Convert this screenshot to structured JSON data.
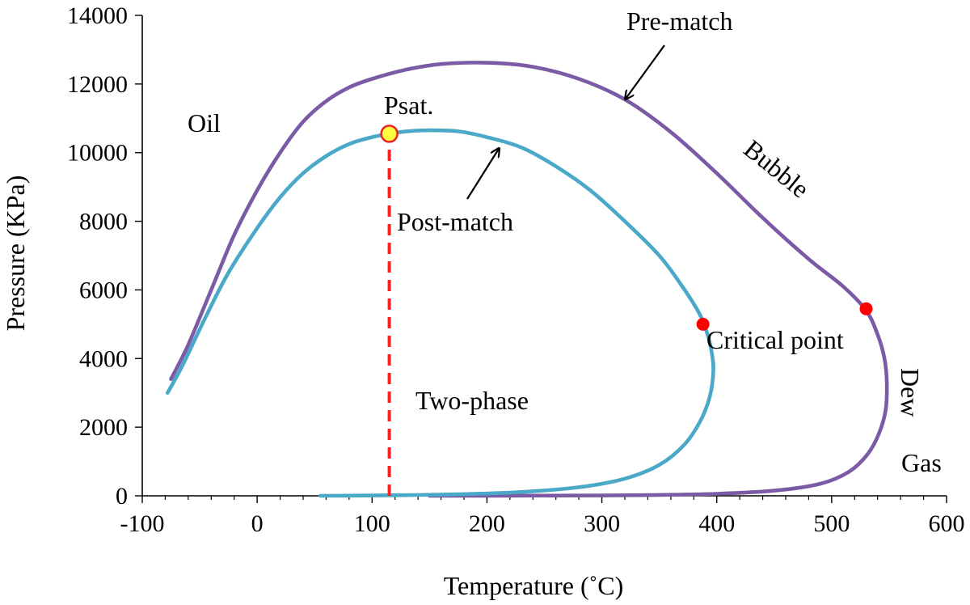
{
  "chart_data": {
    "type": "line",
    "title": "",
    "xlabel": "Temperature (˚C)",
    "ylabel": "Pressure (KPa)",
    "xlim": [
      -100,
      600
    ],
    "ylim": [
      0,
      14000
    ],
    "x_ticks": [
      -100,
      0,
      100,
      200,
      300,
      400,
      500,
      600
    ],
    "y_ticks": [
      0,
      2000,
      4000,
      6000,
      8000,
      10000,
      12000,
      14000
    ],
    "grid": false,
    "series": [
      {
        "name": "Pre-match",
        "color": "#7b5aa6",
        "points": [
          [
            -75,
            3400
          ],
          [
            -60,
            4400
          ],
          [
            -40,
            6000
          ],
          [
            -20,
            7600
          ],
          [
            0,
            8900
          ],
          [
            20,
            10000
          ],
          [
            40,
            10900
          ],
          [
            60,
            11500
          ],
          [
            80,
            11900
          ],
          [
            100,
            12150
          ],
          [
            130,
            12420
          ],
          [
            160,
            12580
          ],
          [
            200,
            12620
          ],
          [
            240,
            12500
          ],
          [
            280,
            12150
          ],
          [
            320,
            11550
          ],
          [
            360,
            10600
          ],
          [
            400,
            9400
          ],
          [
            440,
            8100
          ],
          [
            480,
            6900
          ],
          [
            510,
            6100
          ],
          [
            530,
            5400
          ],
          [
            540,
            4700
          ],
          [
            546,
            4000
          ],
          [
            548,
            3300
          ],
          [
            547,
            2500
          ],
          [
            541,
            1800
          ],
          [
            531,
            1200
          ],
          [
            515,
            700
          ],
          [
            490,
            350
          ],
          [
            450,
            150
          ],
          [
            400,
            60
          ],
          [
            350,
            25
          ],
          [
            300,
            10
          ],
          [
            200,
            3
          ],
          [
            150,
            0
          ]
        ]
      },
      {
        "name": "Post-match",
        "color": "#4aa8c8",
        "points": [
          [
            -78,
            3000
          ],
          [
            -65,
            3800
          ],
          [
            -45,
            5200
          ],
          [
            -25,
            6500
          ],
          [
            0,
            7800
          ],
          [
            20,
            8700
          ],
          [
            40,
            9400
          ],
          [
            60,
            9900
          ],
          [
            80,
            10250
          ],
          [
            100,
            10450
          ],
          [
            115,
            10550
          ],
          [
            130,
            10620
          ],
          [
            150,
            10650
          ],
          [
            175,
            10620
          ],
          [
            200,
            10450
          ],
          [
            230,
            10150
          ],
          [
            260,
            9600
          ],
          [
            290,
            8900
          ],
          [
            320,
            8000
          ],
          [
            350,
            7000
          ],
          [
            370,
            6100
          ],
          [
            385,
            5300
          ],
          [
            392,
            4700
          ],
          [
            396,
            4100
          ],
          [
            397,
            3600
          ],
          [
            394,
            2900
          ],
          [
            386,
            2200
          ],
          [
            372,
            1500
          ],
          [
            350,
            900
          ],
          [
            320,
            500
          ],
          [
            280,
            250
          ],
          [
            230,
            110
          ],
          [
            180,
            50
          ],
          [
            130,
            20
          ],
          [
            90,
            8
          ],
          [
            55,
            0
          ]
        ]
      },
      {
        "name": "Psat. line",
        "color": "#ff2020",
        "dashed": true,
        "points": [
          [
            115,
            0
          ],
          [
            115,
            10550
          ]
        ]
      }
    ],
    "markers": [
      {
        "name": "Psat.",
        "x": 115,
        "y": 10550,
        "fill": "#ffff40",
        "stroke": "#ee2020"
      },
      {
        "name": "critical-point-post-match",
        "x": 388,
        "y": 5000,
        "fill": "#ff0000",
        "stroke": "#ff0000"
      },
      {
        "name": "critical-point-pre-match",
        "x": 530,
        "y": 5450,
        "fill": "#ff0000",
        "stroke": "#ff0000"
      }
    ],
    "annotations": {
      "pre_match": "Pre-match",
      "post_match": "Post-match",
      "oil": "Oil",
      "psat": "Psat.",
      "bubble": "Bubble",
      "critical_point": "Critical point",
      "dew": "Dew",
      "gas": "Gas",
      "two_phase": "Two-phase"
    }
  }
}
